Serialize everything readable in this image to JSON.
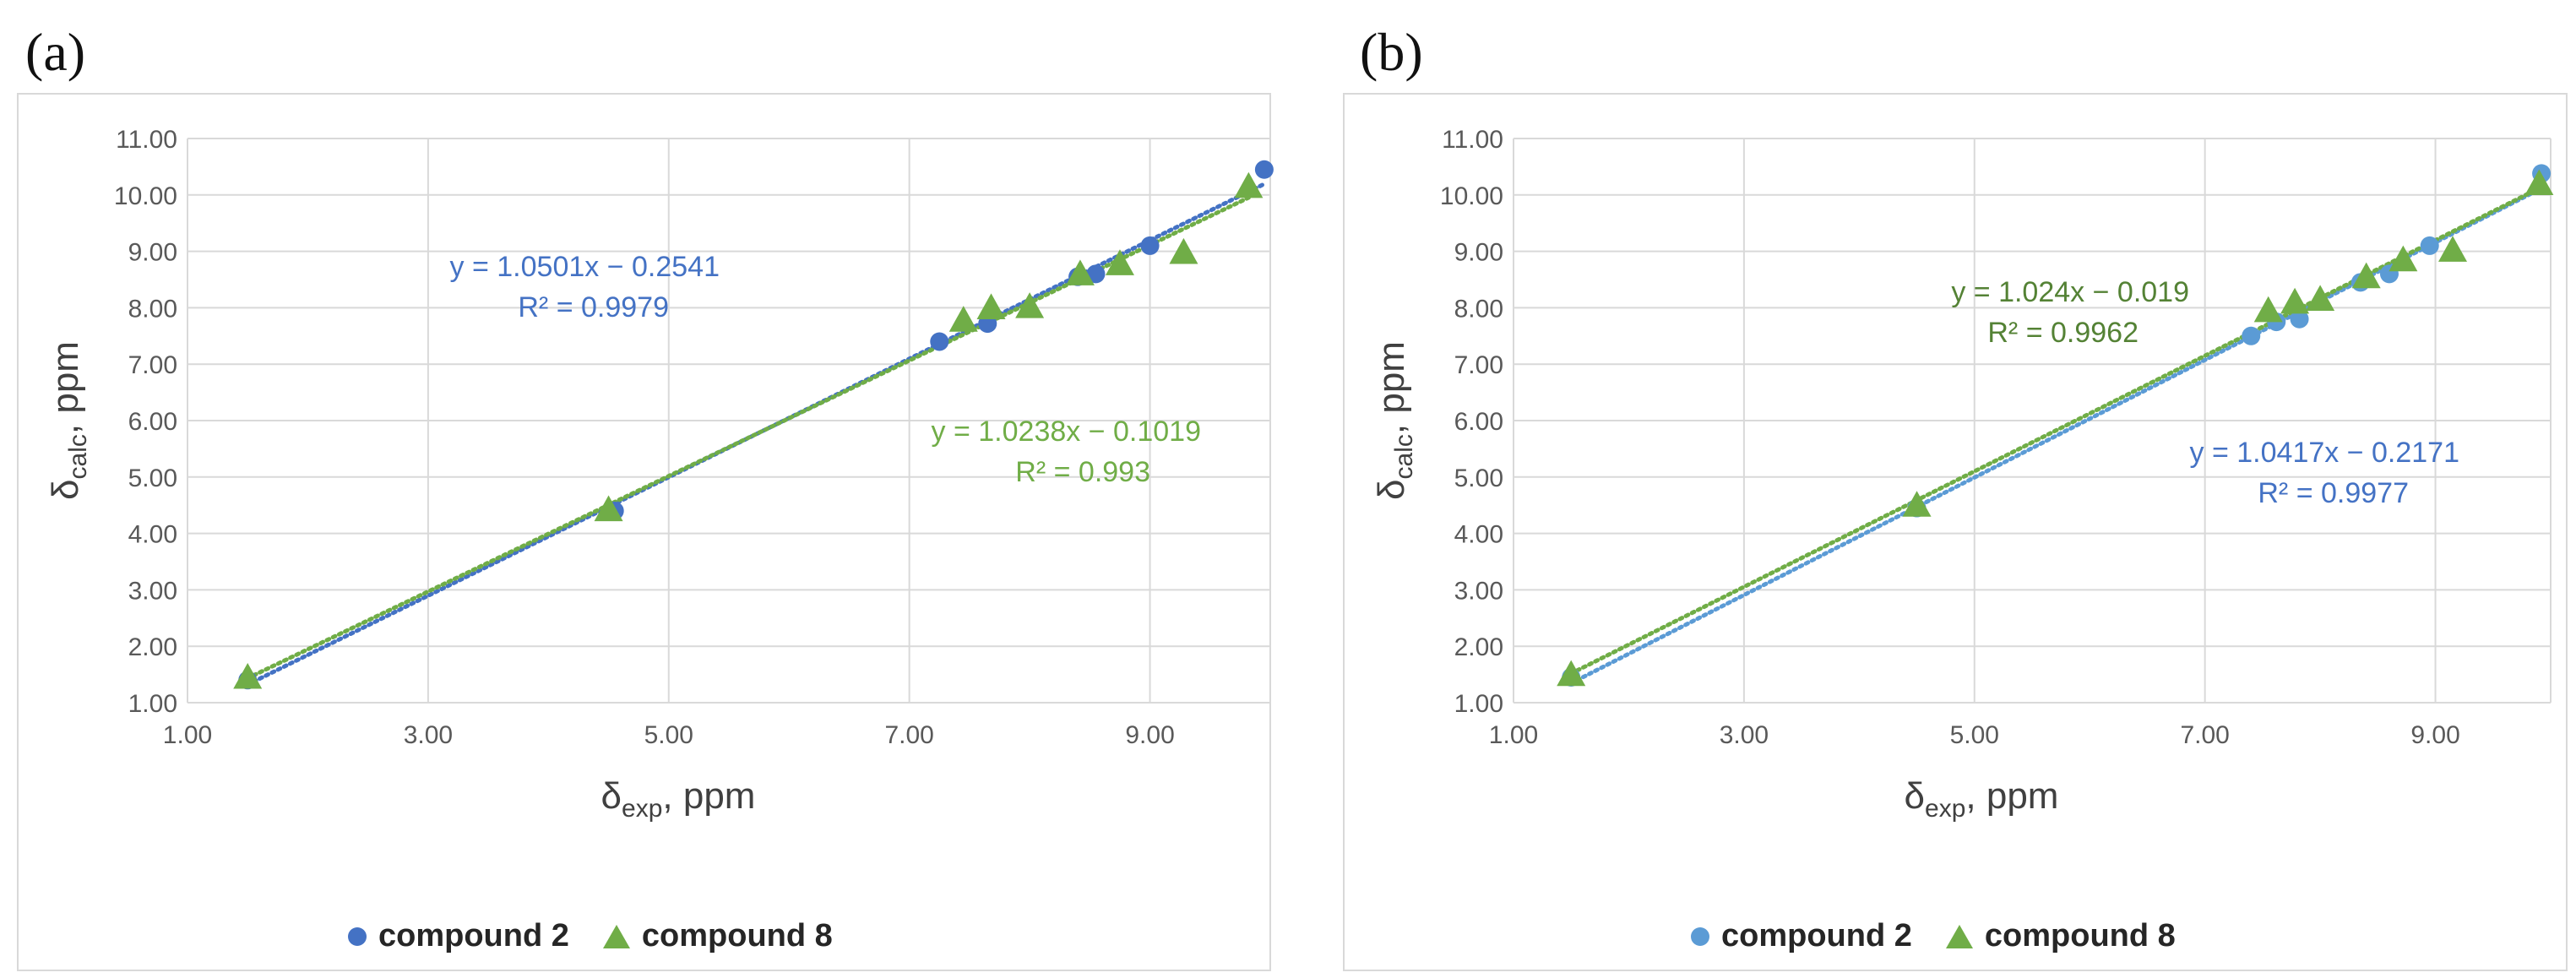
{
  "panels": [
    {
      "label": "(a)",
      "legend": {
        "compound2": "compound 2",
        "compound8": "compound 8"
      },
      "colors": {
        "compound2": "#4472C4",
        "compound8": "#70AD47",
        "eq2": "#4472C4",
        "eq8": "#70AD47"
      }
    },
    {
      "label": "(b)",
      "legend": {
        "compound2": "compound 2",
        "compound8": "compound 8"
      },
      "colors": {
        "compound2": "#5B9BD5",
        "compound8": "#70AD47",
        "eq2": "#4472C4",
        "eq8": "#548235"
      }
    }
  ],
  "chart_data": [
    {
      "type": "scatter",
      "title": "",
      "xlabel": "δexp, ppm",
      "ylabel": "δcalc, ppm",
      "xlim": [
        1.0,
        10.0
      ],
      "ylim": [
        1.0,
        11.0
      ],
      "x_ticks": [
        "1.00",
        "3.00",
        "5.00",
        "7.00",
        "9.00"
      ],
      "y_ticks": [
        "1.00",
        "2.00",
        "3.00",
        "4.00",
        "5.00",
        "6.00",
        "7.00",
        "8.00",
        "9.00",
        "10.00",
        "11.00"
      ],
      "series": [
        {
          "name": "compound 2",
          "marker": "circle",
          "x": [
            1.5,
            4.55,
            7.25,
            7.65,
            8.4,
            8.55,
            9.0,
            9.95
          ],
          "y": [
            1.4,
            4.4,
            7.4,
            7.72,
            8.55,
            8.6,
            9.1,
            10.45
          ],
          "trendline": {
            "slope": 1.0501,
            "intercept": -0.2541,
            "equation": "y = 1.0501x − 0.2541",
            "r2": "R² = 0.9979"
          }
        },
        {
          "name": "compound 8",
          "marker": "triangle",
          "x": [
            1.5,
            4.5,
            7.45,
            7.68,
            8.0,
            8.42,
            8.75,
            9.28,
            9.82
          ],
          "y": [
            1.45,
            4.42,
            7.78,
            8.0,
            8.02,
            8.6,
            8.78,
            8.98,
            10.15
          ],
          "trendline": {
            "slope": 1.0238,
            "intercept": -0.1019,
            "equation": "y = 1.0238x − 0.1019",
            "r2": "R² = 0.993"
          }
        }
      ]
    },
    {
      "type": "scatter",
      "title": "",
      "xlabel": "δexp, ppm",
      "ylabel": "δcalc, ppm",
      "xlim": [
        1.0,
        10.0
      ],
      "ylim": [
        1.0,
        11.0
      ],
      "x_ticks": [
        "1.00",
        "3.00",
        "5.00",
        "7.00",
        "9.00"
      ],
      "y_ticks": [
        "1.00",
        "2.00",
        "3.00",
        "4.00",
        "5.00",
        "6.00",
        "7.00",
        "8.00",
        "9.00",
        "10.00",
        "11.00"
      ],
      "series": [
        {
          "name": "compound 2",
          "marker": "circle",
          "x": [
            1.5,
            4.5,
            7.4,
            7.62,
            7.82,
            8.35,
            8.6,
            8.95,
            9.92
          ],
          "y": [
            1.45,
            4.45,
            7.5,
            7.75,
            7.8,
            8.45,
            8.6,
            9.1,
            10.38
          ],
          "trendline": {
            "slope": 1.0417,
            "intercept": -0.2171,
            "equation": "y = 1.0417x − 0.2171",
            "r2": "R² = 0.9977"
          }
        },
        {
          "name": "compound 8",
          "marker": "triangle",
          "x": [
            1.5,
            4.5,
            7.55,
            7.78,
            8.0,
            8.4,
            8.72,
            9.15,
            9.9
          ],
          "y": [
            1.5,
            4.5,
            7.95,
            8.1,
            8.15,
            8.55,
            8.85,
            9.02,
            10.2
          ],
          "trendline": {
            "slope": 1.024,
            "intercept": -0.019,
            "equation": "y = 1.024x − 0.019",
            "r2": "R² = 0.9962"
          }
        }
      ]
    }
  ]
}
